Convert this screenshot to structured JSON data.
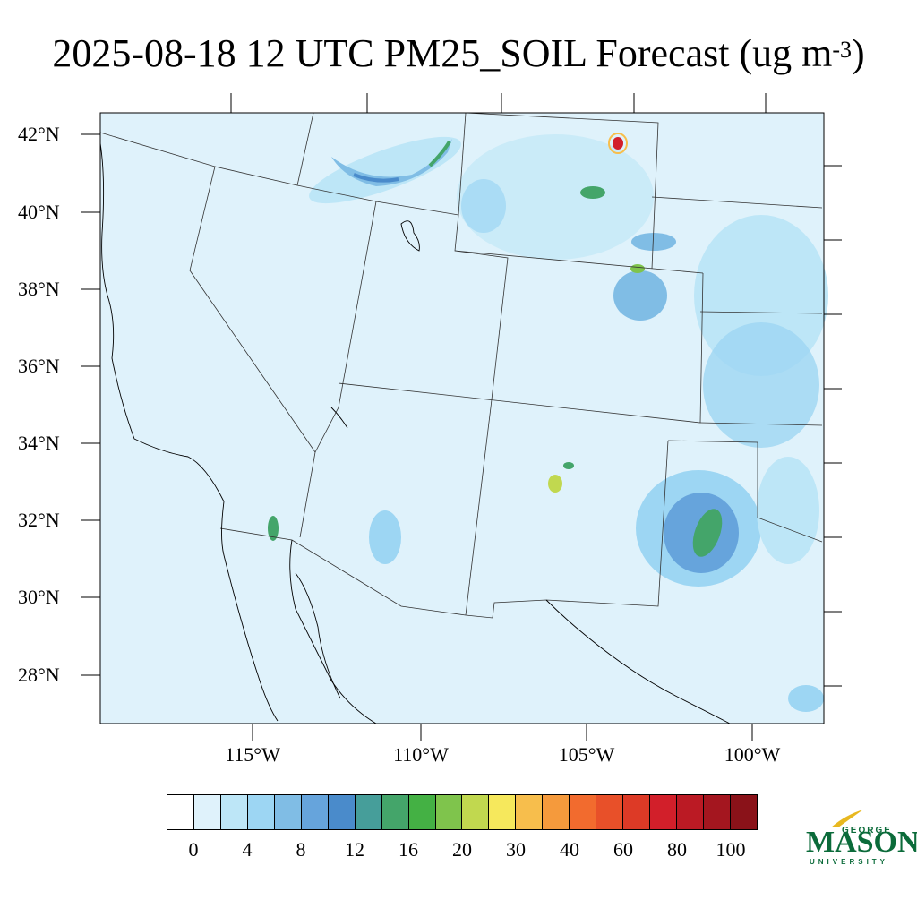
{
  "title": {
    "main": "2025-08-18 12 UTC PM25_SOIL Forecast (ug m",
    "superscript": "-3",
    "close": ")"
  },
  "map": {
    "background_color": "#dff2fb",
    "lat_labels": [
      "42°N",
      "40°N",
      "38°N",
      "36°N",
      "34°N",
      "32°N",
      "30°N",
      "28°N"
    ],
    "lon_labels": [
      "115°W",
      "110°W",
      "105°W",
      "100°W"
    ]
  },
  "colorbar": {
    "colors": [
      "#ffffff",
      "#dff2fb",
      "#bde6f7",
      "#9dd6f3",
      "#80bde5",
      "#66a4dc",
      "#4a8bcb",
      "#469e9a",
      "#44a56a",
      "#44b144",
      "#7fc44c",
      "#c1d84f",
      "#f6e85c",
      "#f7be4c",
      "#f59a3c",
      "#f26b2e",
      "#e85029",
      "#dd3a26",
      "#d21f2a",
      "#bb1a24",
      "#a4161f",
      "#8a1219"
    ],
    "labels": [
      "0",
      "4",
      "8",
      "12",
      "16",
      "20",
      "30",
      "40",
      "60",
      "80",
      "100"
    ]
  },
  "logo": {
    "line1": "GEORGE",
    "line2": "MASON",
    "line3": "UNIVERSITY",
    "color": "#0b6b3a",
    "accent": "#e8b820"
  }
}
